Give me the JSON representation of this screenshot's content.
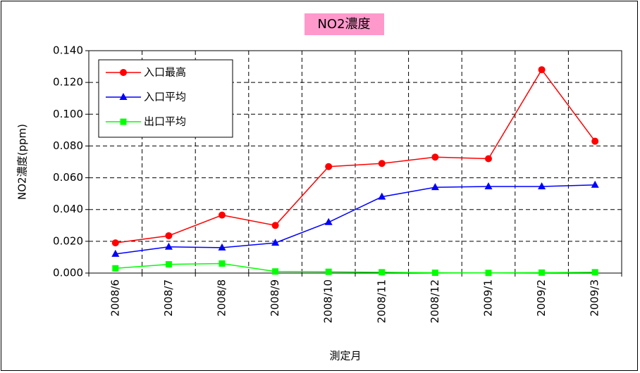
{
  "chart_data": {
    "type": "line",
    "title": "NO2濃度",
    "x_label": "測定月",
    "y_label": "NO2濃度(ppm)",
    "categories": [
      "2008/6",
      "2008/7",
      "2008/8",
      "2008/9",
      "2008/10",
      "2008/11",
      "2008/12",
      "2009/1",
      "2009/2",
      "2009/3"
    ],
    "series": [
      {
        "name": "入口最高",
        "color": "#ff0000",
        "marker": "circle",
        "values": [
          0.019,
          0.0235,
          0.0365,
          0.03,
          0.067,
          0.069,
          0.073,
          0.072,
          0.128,
          0.083
        ]
      },
      {
        "name": "入口平均",
        "color": "#0000ff",
        "marker": "triangle",
        "values": [
          0.012,
          0.0165,
          0.016,
          0.019,
          0.032,
          0.048,
          0.054,
          0.0545,
          0.0545,
          0.0555
        ]
      },
      {
        "name": "出口平均",
        "color": "#00ff00",
        "marker": "square",
        "values": [
          0.003,
          0.0055,
          0.006,
          0.001,
          0.0008,
          0.0005,
          0.0002,
          0.0001,
          0.0003,
          0.0005
        ]
      }
    ],
    "ylim": [
      0,
      0.14
    ],
    "yticks": [
      {
        "value": 0,
        "label": "0.000"
      },
      {
        "value": 0.02,
        "label": "0.020"
      },
      {
        "value": 0.04,
        "label": "0.040"
      },
      {
        "value": 0.06,
        "label": "0.060"
      },
      {
        "value": 0.08,
        "label": "0.080"
      },
      {
        "value": 0.1,
        "label": "0.100"
      },
      {
        "value": 0.12,
        "label": "0.120"
      },
      {
        "value": 0.14,
        "label": "0.140"
      }
    ],
    "grid": true,
    "legend": "upper left"
  }
}
